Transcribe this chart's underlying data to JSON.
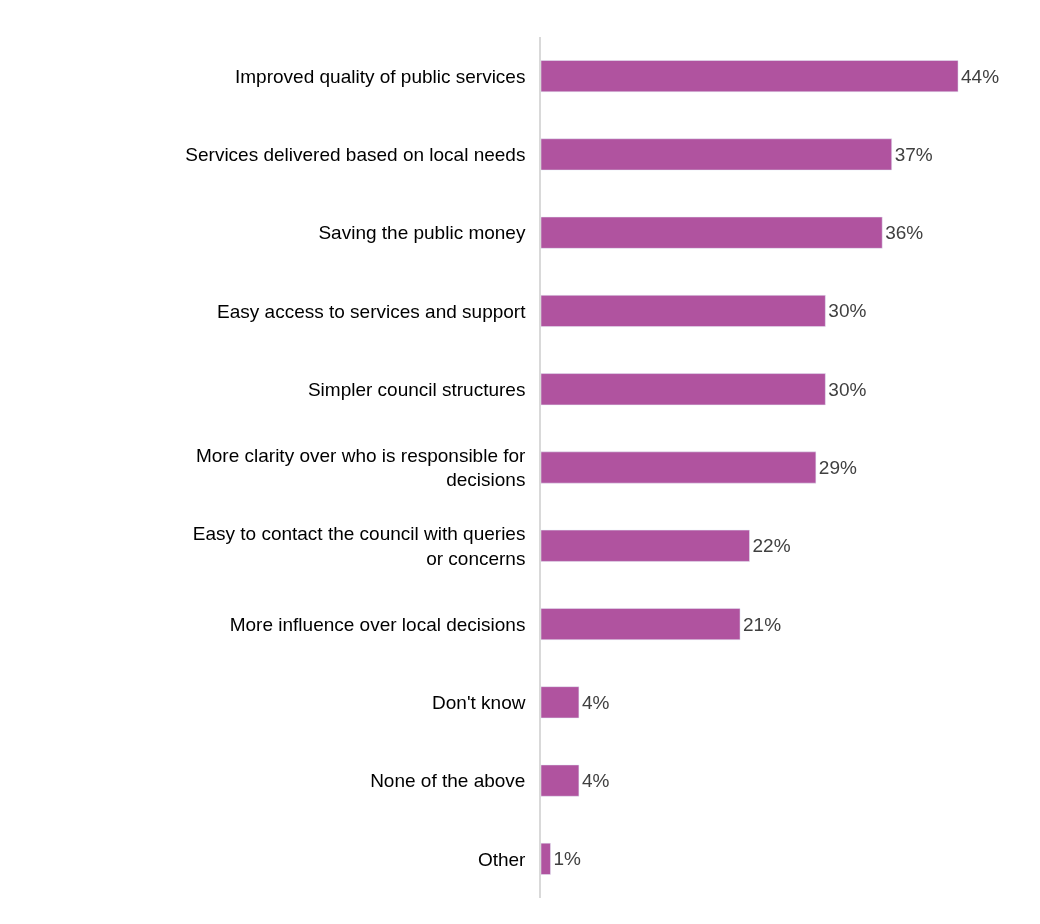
{
  "chart_data": {
    "type": "bar",
    "orientation": "horizontal",
    "categories": [
      "Improved quality of public services",
      "Services delivered based on local needs",
      "Saving the public money",
      "Easy access to services and support",
      "Simpler council structures",
      "More clarity over who is responsible for decisions",
      "Easy to contact the council with queries or concerns",
      "More influence over local decisions",
      "Don't know",
      "None of the above",
      "Other"
    ],
    "values": [
      44,
      37,
      36,
      30,
      30,
      29,
      22,
      21,
      4,
      4,
      1
    ],
    "value_labels": [
      "44%",
      "37%",
      "36%",
      "30%",
      "30%",
      "29%",
      "22%",
      "21%",
      "4%",
      "4%",
      "1%"
    ],
    "color": "#b0539f",
    "tick_labels": "y",
    "legend": false
  }
}
